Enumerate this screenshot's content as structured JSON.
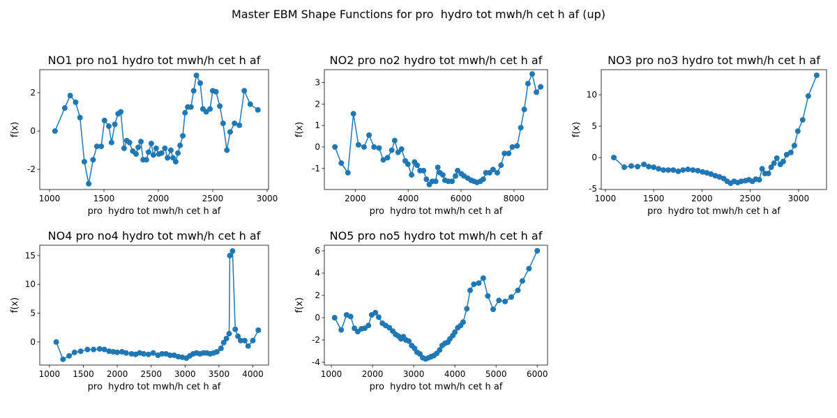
{
  "title": "Master EBM Shape Functions for pro  hydro tot mwh/h cet h af (up)",
  "chart_data": [
    {
      "type": "line",
      "title": "NO1 pro no1 hydro tot mwh/h cet h af",
      "xlabel": "pro  hydro tot mwh/h cet h af",
      "ylabel": "f(x)",
      "color": "#1f77b4",
      "x": [
        1050,
        1140,
        1190,
        1240,
        1280,
        1320,
        1360,
        1400,
        1435,
        1475,
        1505,
        1545,
        1570,
        1600,
        1630,
        1655,
        1685,
        1710,
        1735,
        1765,
        1795,
        1815,
        1840,
        1860,
        1890,
        1910,
        1935,
        1955,
        1980,
        2005,
        2030,
        2060,
        2085,
        2115,
        2135,
        2160,
        2180,
        2200,
        2225,
        2245,
        2270,
        2300,
        2325,
        2350,
        2385,
        2410,
        2440,
        2475,
        2500,
        2530,
        2565,
        2595,
        2630,
        2660,
        2700,
        2745,
        2790,
        2845,
        2915
      ],
      "values": [
        0,
        1.2,
        1.85,
        1.5,
        0.7,
        -1.6,
        -2.75,
        -1.5,
        -0.8,
        -0.8,
        0.55,
        0.25,
        -0.6,
        0.35,
        0.9,
        1.0,
        -0.9,
        -0.5,
        -0.6,
        -1.05,
        -1.2,
        -0.85,
        -0.55,
        -1.5,
        -1.5,
        -1.1,
        -0.65,
        -1.25,
        -0.9,
        -1.2,
        -1.15,
        -0.9,
        -1.4,
        -1.0,
        -1.4,
        -1.6,
        -1.15,
        -0.75,
        -0.25,
        0.95,
        1.25,
        1.25,
        2.1,
        2.9,
        2.5,
        1.15,
        1.0,
        1.15,
        2.1,
        2.05,
        1.3,
        0.4,
        -1.0,
        -0.05,
        0.4,
        0.3,
        2.1,
        1.4,
        1.1
      ],
      "xlim": [
        910,
        3013
      ],
      "ylim": [
        -3.05,
        3.2
      ],
      "xticks": [
        1000,
        1500,
        2000,
        2500,
        3000
      ],
      "yticks": [
        -2,
        0,
        2
      ]
    },
    {
      "type": "line",
      "title": "NO2 pro no2 hydro tot mwh/h cet h af",
      "xlabel": "pro  hydro tot mwh/h cet h af",
      "ylabel": "f(x)",
      "color": "#1f77b4",
      "x": [
        1230,
        1470,
        1720,
        1930,
        2120,
        2330,
        2520,
        2710,
        2900,
        3060,
        3220,
        3380,
        3490,
        3620,
        3750,
        3890,
        3990,
        4130,
        4240,
        4340,
        4450,
        4580,
        4690,
        4800,
        4910,
        5040,
        5120,
        5200,
        5310,
        5390,
        5520,
        5660,
        5790,
        5870,
        6010,
        6110,
        6250,
        6380,
        6490,
        6600,
        6730,
        6840,
        6940,
        7080,
        7210,
        7370,
        7510,
        7640,
        7800,
        7940,
        8120,
        8260,
        8390,
        8530,
        8690,
        8850,
        9010
      ],
      "values": [
        0,
        -0.75,
        -1.2,
        1.55,
        0.1,
        0,
        0.55,
        0,
        -0.05,
        -0.6,
        -0.5,
        -0.15,
        0.3,
        -0.25,
        -0.1,
        -0.65,
        -0.8,
        -1.3,
        -0.7,
        -0.85,
        -1.1,
        -1.1,
        -1.5,
        -1.75,
        -1.6,
        -1.6,
        -0.95,
        -1.2,
        -1.3,
        -1.55,
        -1.6,
        -1.6,
        -1.35,
        -1.1,
        -1.25,
        -1.35,
        -1.45,
        -1.55,
        -1.6,
        -1.65,
        -1.6,
        -1.5,
        -1.2,
        -1.2,
        -1.05,
        -1.2,
        -0.85,
        -0.3,
        -0.3,
        0,
        0.05,
        0.9,
        1.75,
        2.95,
        3.4,
        2.55,
        2.8
      ],
      "xlim": [
        830,
        9270
      ],
      "ylim": [
        -1.98,
        3.6
      ],
      "xticks": [
        2000,
        4000,
        6000,
        8000
      ],
      "yticks": [
        -1,
        0,
        1,
        2,
        3
      ]
    },
    {
      "type": "line",
      "title": "NO3 pro no3 hydro tot mwh/h cet h af",
      "xlabel": "pro  hydro tot mwh/h cet h af",
      "ylabel": "f(x)",
      "color": "#1f77b4",
      "x": [
        1087,
        1196,
        1268,
        1333,
        1399,
        1449,
        1500,
        1551,
        1601,
        1652,
        1703,
        1754,
        1804,
        1855,
        1906,
        1957,
        2007,
        2051,
        2094,
        2138,
        2181,
        2225,
        2261,
        2297,
        2333,
        2370,
        2406,
        2449,
        2486,
        2522,
        2558,
        2594,
        2623,
        2652,
        2688,
        2717,
        2746,
        2775,
        2812,
        2841,
        2877,
        2920,
        2957,
        2993,
        3043,
        3101,
        3188
      ],
      "values": [
        0,
        -1.55,
        -1.35,
        -1.45,
        -1.1,
        -1.45,
        -1.55,
        -1.8,
        -2.0,
        -2.0,
        -2.0,
        -2.2,
        -2.0,
        -1.9,
        -2.0,
        -2.1,
        -2.3,
        -2.45,
        -2.65,
        -2.9,
        -3.1,
        -3.35,
        -3.8,
        -4.1,
        -3.8,
        -4.0,
        -3.8,
        -3.7,
        -3.55,
        -3.8,
        -3.45,
        -3.55,
        -1.8,
        -2.55,
        -2.55,
        -1.55,
        -0.9,
        -0.1,
        -1.1,
        -0.65,
        0.45,
        0.8,
        1.9,
        4.2,
        6.0,
        9.8,
        13.1
      ],
      "xlim": [
        957,
        3290
      ],
      "ylim": [
        -5.1,
        14.0
      ],
      "xticks": [
        1000,
        1500,
        2000,
        2500,
        3000
      ],
      "yticks": [
        -5,
        0,
        5,
        10
      ]
    },
    {
      "type": "line",
      "title": "NO4 pro no4 hydro tot mwh/h cet h af",
      "xlabel": "pro  hydro tot mwh/h cet h af",
      "ylabel": "f(x)",
      "color": "#1f77b4",
      "x": [
        1100,
        1200,
        1290,
        1370,
        1460,
        1560,
        1650,
        1740,
        1810,
        1880,
        1940,
        2000,
        2070,
        2130,
        2210,
        2270,
        2330,
        2390,
        2460,
        2530,
        2600,
        2660,
        2720,
        2780,
        2840,
        2900,
        2960,
        3020,
        3070,
        3120,
        3170,
        3220,
        3270,
        3320,
        3370,
        3420,
        3470,
        3530,
        3570,
        3610,
        3650,
        3660,
        3700,
        3740,
        3780,
        3820,
        3880,
        3930,
        4000,
        4080
      ],
      "values": [
        0,
        -3.0,
        -2.4,
        -1.8,
        -1.6,
        -1.3,
        -1.3,
        -1.2,
        -1.3,
        -1.6,
        -1.7,
        -1.8,
        -1.7,
        -1.9,
        -2.05,
        -2.15,
        -1.9,
        -2.05,
        -2.15,
        -1.9,
        -2.3,
        -2.05,
        -2.05,
        -2.3,
        -2.3,
        -2.55,
        -2.65,
        -2.8,
        -2.4,
        -2.05,
        -1.9,
        -2.05,
        -1.9,
        -1.9,
        -2.05,
        -1.9,
        -1.7,
        -1.1,
        -0.1,
        0.6,
        1.45,
        15.0,
        15.8,
        2.2,
        1.0,
        0.25,
        0.25,
        -0.7,
        0.25,
        2.05
      ],
      "xlim": [
        857,
        4231
      ],
      "ylim": [
        -4.0,
        16.8
      ],
      "xticks": [
        1000,
        1500,
        2000,
        2500,
        3000,
        3500,
        4000
      ],
      "yticks": [
        0,
        5,
        10,
        15
      ]
    },
    {
      "type": "line",
      "title": "NO5 pro no5 hydro tot mwh/h cet h af",
      "xlabel": "pro  hydro tot mwh/h cet h af",
      "ylabel": "f(x)",
      "color": "#1f77b4",
      "x": [
        1080,
        1240,
        1370,
        1470,
        1560,
        1640,
        1730,
        1810,
        1900,
        1980,
        2070,
        2150,
        2240,
        2320,
        2410,
        2490,
        2560,
        2630,
        2690,
        2750,
        2810,
        2880,
        2950,
        3020,
        3080,
        3150,
        3220,
        3290,
        3360,
        3420,
        3490,
        3560,
        3630,
        3690,
        3760,
        3830,
        3880,
        3950,
        4000,
        4070,
        4140,
        4200,
        4290,
        4370,
        4460,
        4580,
        4690,
        4800,
        4930,
        5070,
        5220,
        5370,
        5530,
        5640,
        5800,
        6000
      ],
      "values": [
        0,
        -1.1,
        0.25,
        0.1,
        -0.95,
        -1.25,
        -1.0,
        -0.95,
        -0.7,
        0.25,
        0.45,
        0.05,
        -0.5,
        -0.7,
        -0.9,
        -1.2,
        -1.5,
        -1.65,
        -1.9,
        -1.7,
        -2.0,
        -2.1,
        -2.5,
        -2.75,
        -3.1,
        -3.25,
        -3.6,
        -3.7,
        -3.6,
        -3.5,
        -3.4,
        -3.2,
        -2.9,
        -2.5,
        -2.3,
        -2.2,
        -1.9,
        -1.6,
        -1.3,
        -0.9,
        -0.7,
        -0.4,
        0.8,
        2.45,
        3.0,
        3.1,
        3.55,
        1.95,
        0.75,
        1.55,
        1.45,
        1.85,
        2.45,
        3.3,
        4.4,
        6.0
      ],
      "xlim": [
        830,
        6250
      ],
      "ylim": [
        -4.25,
        6.5
      ],
      "xticks": [
        1000,
        2000,
        3000,
        4000,
        5000,
        6000
      ],
      "yticks": [
        -4,
        -2,
        0,
        2,
        4,
        6
      ]
    }
  ]
}
